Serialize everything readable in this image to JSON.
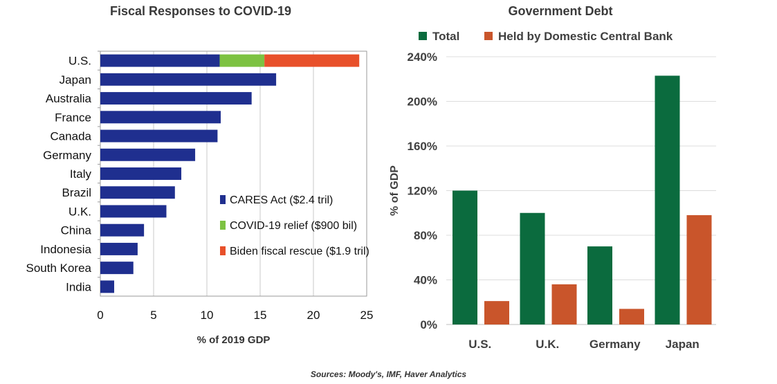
{
  "source": "Sources: Moody's, IMF, Haver Analytics",
  "chart_data": [
    {
      "type": "bar",
      "orientation": "horizontal",
      "stacked": true,
      "title": "Fiscal Responses to COVID-19",
      "xlabel": "% of 2019 GDP",
      "ylabel": "",
      "xlim": [
        0,
        25
      ],
      "xticks": [
        "0",
        "5",
        "10",
        "15",
        "20",
        "25"
      ],
      "grid": true,
      "legend_position": "lower-right",
      "categories": [
        "U.S.",
        "Japan",
        "Australia",
        "France",
        "Canada",
        "Germany",
        "Italy",
        "Brazil",
        "U.K.",
        "China",
        "Indonesia",
        "South Korea",
        "India"
      ],
      "series": [
        {
          "name": "CARES Act ($2.4 tril)",
          "color": "#1f2f8f",
          "values": [
            11.2,
            16.5,
            14.2,
            11.3,
            11.0,
            8.9,
            7.6,
            7.0,
            6.2,
            4.1,
            3.5,
            3.1,
            1.3
          ]
        },
        {
          "name": "COVID-19 relief ($900 bil)",
          "color": "#7dc242",
          "values": [
            4.2,
            0,
            0,
            0,
            0,
            0,
            0,
            0,
            0,
            0,
            0,
            0,
            0
          ]
        },
        {
          "name": "Biden fiscal rescue ($1.9 tril)",
          "color": "#e8502a",
          "values": [
            8.9,
            0,
            0,
            0,
            0,
            0,
            0,
            0,
            0,
            0,
            0,
            0,
            0
          ]
        }
      ]
    },
    {
      "type": "bar",
      "orientation": "vertical",
      "stacked": false,
      "title": "Government Debt",
      "xlabel": "",
      "ylabel": "% of GDP",
      "ylim": [
        0,
        240
      ],
      "yticks": [
        "0%",
        "40%",
        "80%",
        "120%",
        "160%",
        "200%",
        "240%"
      ],
      "grid": true,
      "legend_position": "top",
      "categories": [
        "U.S.",
        "U.K.",
        "Germany",
        "Japan"
      ],
      "series": [
        {
          "name": "Total",
          "color": "#0b6b3e",
          "values": [
            120,
            100,
            70,
            223
          ]
        },
        {
          "name": "Held by Domestic Central Bank",
          "color": "#c9552b",
          "values": [
            21,
            36,
            14,
            98
          ]
        }
      ]
    }
  ]
}
